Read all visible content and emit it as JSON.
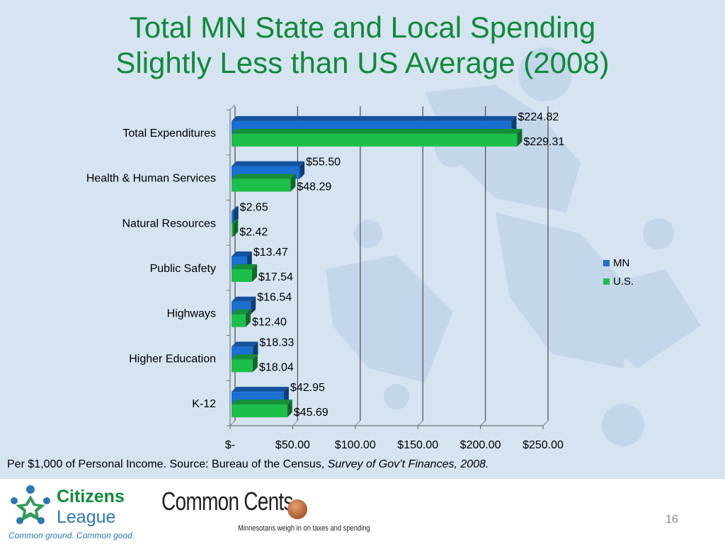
{
  "title": {
    "line1": "Total MN State and Local Spending",
    "line2": "Slightly Less than US Average (2008)"
  },
  "chart_data": {
    "type": "bar",
    "orientation": "horizontal",
    "title": "",
    "xlabel": "",
    "ylabel": "",
    "categories": [
      "Total Expenditures",
      "Health & Human Services",
      "Natural Resources",
      "Public Safety",
      "Highways",
      "Higher Education",
      "K-12"
    ],
    "series": [
      {
        "name": "MN",
        "color": "#1a6fd1",
        "values": [
          224.82,
          55.5,
          2.65,
          13.47,
          16.54,
          18.33,
          42.95
        ],
        "labels": [
          "$224.82",
          "$55.50",
          "$2.65",
          "$13.47",
          "$16.54",
          "$18.33",
          "$42.95"
        ]
      },
      {
        "name": "U.S.",
        "color": "#1cbf4a",
        "values": [
          229.31,
          48.29,
          2.42,
          17.54,
          12.4,
          18.04,
          45.69
        ],
        "labels": [
          "$229.31",
          "$48.29",
          "$2.42",
          "$17.54",
          "$12.40",
          "$18.04",
          "$45.69"
        ]
      }
    ],
    "xlim": [
      0,
      250
    ],
    "x_ticks": [
      0,
      50,
      100,
      150,
      200,
      250
    ],
    "x_tick_labels": [
      "$-",
      "$50.00",
      "$100.00",
      "$150.00",
      "$200.00",
      "$250.00"
    ],
    "grid": true,
    "legend_position": "right"
  },
  "source": {
    "text": "Per $1,000 of Personal Income. Source: Bureau of the Census, ",
    "publication": "Survey of Gov’t Finances, 2008."
  },
  "footer": {
    "citizens_league_name1": "Citizens",
    "citizens_league_name2": "League",
    "citizens_league_tagline": "Common ground. Common good.",
    "common_cents_name": "Common Cents",
    "common_cents_tagline": "Minnesotans weigh in on taxes and spending",
    "page_number": "16"
  }
}
